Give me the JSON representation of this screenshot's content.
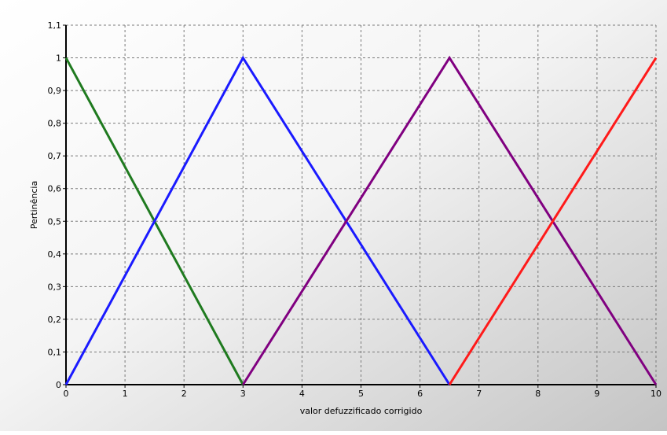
{
  "chart_data": {
    "type": "line",
    "title": "",
    "xlabel": "valor defuzzificado corrigido",
    "ylabel": "Pertinência",
    "xlim": [
      0,
      10
    ],
    "ylim": [
      0,
      1.1
    ],
    "x_ticks": [
      0,
      1,
      2,
      3,
      4,
      5,
      6,
      7,
      8,
      9,
      10
    ],
    "x_tick_labels": [
      "0",
      "1",
      "2",
      "3",
      "4",
      "5",
      "6",
      "7",
      "8",
      "9",
      "10"
    ],
    "y_ticks": [
      0,
      0.1,
      0.2,
      0.3,
      0.4,
      0.5,
      0.6,
      0.7,
      0.8,
      0.9,
      1,
      1.1
    ],
    "y_tick_labels": [
      "0",
      "0,1",
      "0,2",
      "0,3",
      "0,4",
      "0,5",
      "0,6",
      "0,7",
      "0,8",
      "0,9",
      "1",
      "1,1"
    ],
    "grid": true,
    "grid_style": "dashed",
    "background": "gradient-white-to-gray",
    "series": [
      {
        "color": "#1f7a1f",
        "x": [
          0,
          3
        ],
        "y": [
          1,
          0
        ]
      },
      {
        "color": "#1a1aff",
        "x": [
          0,
          3,
          6.5
        ],
        "y": [
          0,
          1,
          0
        ]
      },
      {
        "color": "#800080",
        "x": [
          3,
          6.5,
          10
        ],
        "y": [
          0,
          1,
          0
        ]
      },
      {
        "color": "#ff1a1a",
        "x": [
          6.5,
          10
        ],
        "y": [
          0,
          1
        ]
      }
    ]
  }
}
